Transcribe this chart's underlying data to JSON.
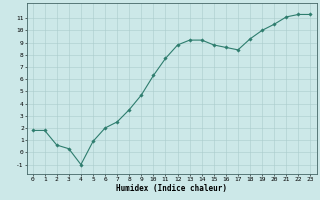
{
  "x": [
    0,
    1,
    2,
    3,
    4,
    5,
    6,
    7,
    8,
    9,
    10,
    11,
    12,
    13,
    14,
    15,
    16,
    17,
    18,
    19,
    20,
    21,
    22,
    23
  ],
  "y": [
    1.8,
    1.8,
    0.6,
    0.3,
    -1.0,
    0.9,
    2.0,
    2.5,
    3.5,
    4.7,
    6.3,
    7.7,
    8.8,
    9.2,
    9.2,
    8.8,
    8.6,
    8.4,
    9.3,
    10.0,
    10.5,
    11.1,
    11.3,
    11.3
  ],
  "xlabel": "Humidex (Indice chaleur)",
  "line_color": "#2e7d6e",
  "marker_color": "#2e7d6e",
  "bg_color": "#cce8e8",
  "grid_color": "#aacccc",
  "xlim": [
    -0.5,
    23.5
  ],
  "ylim": [
    -1.8,
    12.2
  ],
  "xticks": [
    0,
    1,
    2,
    3,
    4,
    5,
    6,
    7,
    8,
    9,
    10,
    11,
    12,
    13,
    14,
    15,
    16,
    17,
    18,
    19,
    20,
    21,
    22,
    23
  ],
  "yticks": [
    -1,
    0,
    1,
    2,
    3,
    4,
    5,
    6,
    7,
    8,
    9,
    10,
    11
  ],
  "tick_fontsize": 4.5,
  "xlabel_fontsize": 5.5,
  "linewidth": 0.8,
  "markersize": 1.8
}
